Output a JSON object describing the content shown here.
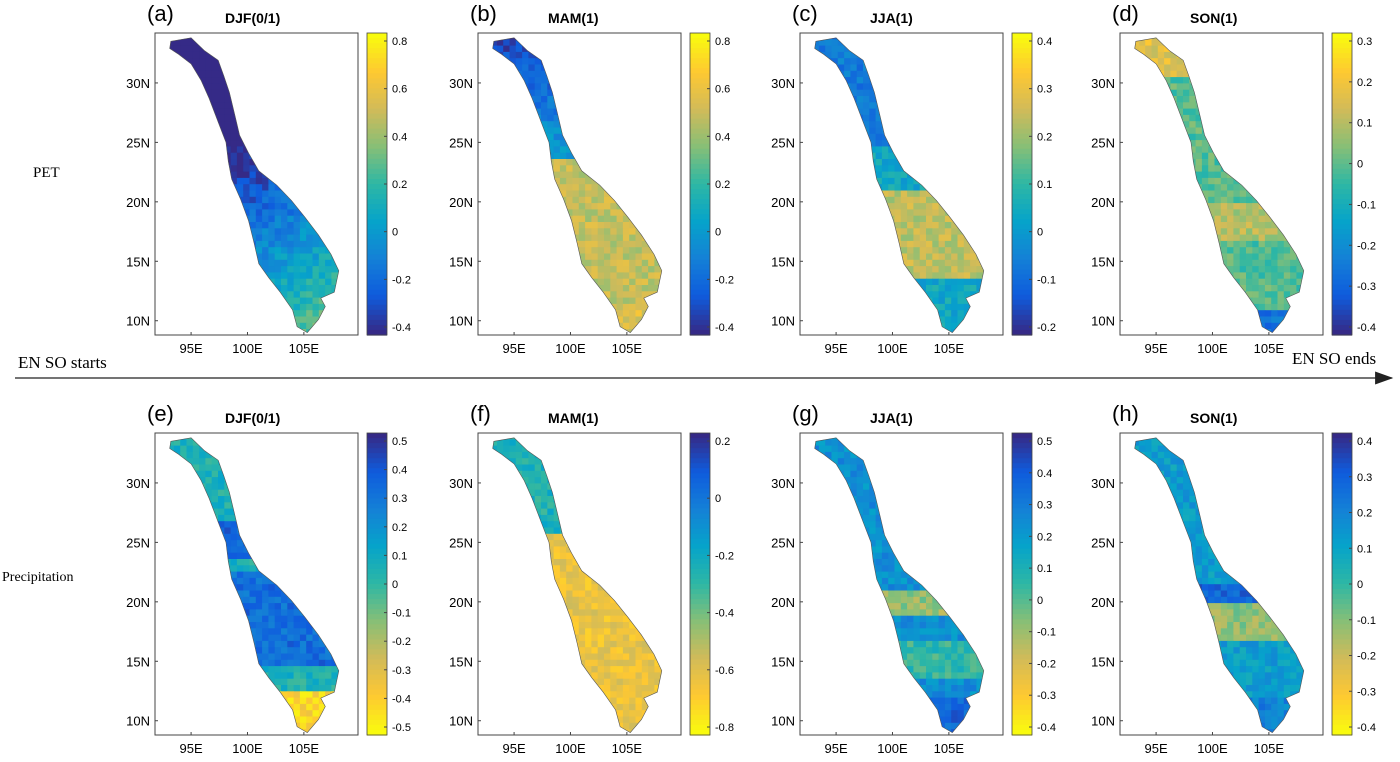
{
  "figure": {
    "row_labels": [
      "PET",
      "Precipitation"
    ],
    "timeline": {
      "start_label": "EN SO  starts",
      "end_label": "EN SO  ends"
    },
    "x_ticks": [
      "95E",
      "100E",
      "105E"
    ],
    "y_ticks": [
      "10N",
      "15N",
      "20N",
      "25N",
      "30N"
    ],
    "palette_parula": [
      "#352a87",
      "#0f5cdd",
      "#1481d6",
      "#06a4ca",
      "#2eb7a4",
      "#87bf77",
      "#d1bb59",
      "#fec832",
      "#f9fb0e"
    ],
    "panels": [
      {
        "letter": "(a)",
        "season": "DJF(0/1)",
        "variable": "PET",
        "colorbar": {
          "ticks": [
            "0.8",
            "0.6",
            "0.4",
            "0.2",
            "0",
            "-0.2",
            "-0.4"
          ],
          "reversed": false
        },
        "pattern": "dry-south-wet-north"
      },
      {
        "letter": "(b)",
        "season": "MAM(1)",
        "variable": "PET",
        "colorbar": {
          "ticks": [
            "0.8",
            "0.6",
            "0.4",
            "0.2",
            "0",
            "-0.2",
            "-0.4"
          ],
          "reversed": false
        },
        "pattern": "strong-positive-central-south"
      },
      {
        "letter": "(c)",
        "season": "JJA(1)",
        "variable": "PET",
        "colorbar": {
          "ticks": [
            "0.4",
            "0.3",
            "0.2",
            "0.1",
            "0",
            "-0.1",
            "-0.2"
          ],
          "reversed": false
        },
        "pattern": "mixed-central-positive"
      },
      {
        "letter": "(d)",
        "season": "SON(1)",
        "variable": "PET",
        "colorbar": {
          "ticks": [
            "0.3",
            "0.2",
            "0.1",
            "0",
            "-0.1",
            "-0.2",
            "-0.3",
            "-0.4"
          ],
          "reversed": false
        },
        "pattern": "weak-mixed"
      },
      {
        "letter": "(e)",
        "season": "DJF(0/1)",
        "variable": "Precipitation",
        "colorbar": {
          "ticks": [
            "0.5",
            "0.4",
            "0.3",
            "0.2",
            "0.1",
            "0",
            "-0.1",
            "-0.2",
            "-0.3",
            "-0.4",
            "-0.5"
          ],
          "reversed": true
        },
        "pattern": "wet-central"
      },
      {
        "letter": "(f)",
        "season": "MAM(1)",
        "variable": "Precipitation",
        "colorbar": {
          "ticks": [
            "0.2",
            "0",
            "-0.2",
            "-0.4",
            "-0.6",
            "-0.8"
          ],
          "reversed": true
        },
        "pattern": "dry-central-south"
      },
      {
        "letter": "(g)",
        "season": "JJA(1)",
        "variable": "Precipitation",
        "colorbar": {
          "ticks": [
            "0.5",
            "0.4",
            "0.3",
            "0.2",
            "0.1",
            "0",
            "-0.1",
            "-0.2",
            "-0.3",
            "-0.4"
          ],
          "reversed": true
        },
        "pattern": "wet-mixed"
      },
      {
        "letter": "(h)",
        "season": "SON(1)",
        "variable": "Precipitation",
        "colorbar": {
          "ticks": [
            "0.4",
            "0.3",
            "0.2",
            "0.1",
            "0",
            "-0.1",
            "-0.2",
            "-0.3",
            "-0.4"
          ],
          "reversed": true
        },
        "pattern": "wet-mixed-2"
      }
    ]
  }
}
